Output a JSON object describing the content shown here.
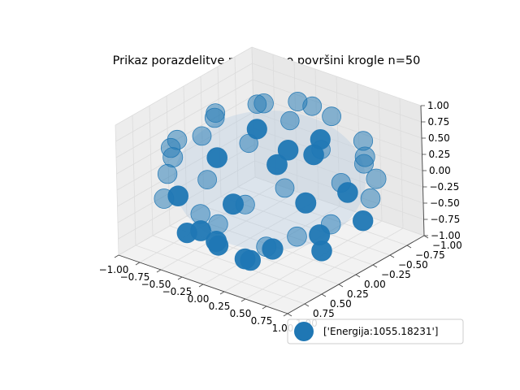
{
  "chart_data": {
    "type": "scatter",
    "title": "Prikaz porazdelitve nabojev po površini krogle n=50",
    "marker_color": "#1f77b4",
    "pane_color": "#f2f2f2",
    "grid_color": "#dcdcdc",
    "xlim": [
      -1.0,
      1.0
    ],
    "ylim": [
      -1.0,
      1.0
    ],
    "zlim": [
      -1.0,
      1.0
    ],
    "x_ticks": [
      "−1.00",
      "−0.75",
      "−0.50",
      "−0.25",
      "0.00",
      "0.25",
      "0.50",
      "0.75",
      "1.00"
    ],
    "y_ticks": [
      "−1.00",
      "−0.75",
      "−0.50",
      "−0.25",
      "0.00",
      "0.25",
      "0.50",
      "0.75",
      "1.00"
    ],
    "z_ticks": [
      "−1.00",
      "−0.75",
      "−0.50",
      "−0.25",
      "0.00",
      "0.25",
      "0.50",
      "0.75",
      "1.00"
    ],
    "legend": {
      "label": "['Energija:1055.18231']",
      "position": "lower right"
    },
    "n_points": 50,
    "points": [
      [
        0.96,
        0.04,
        0.27
      ],
      [
        0.91,
        -0.23,
        -0.35
      ],
      [
        0.82,
        0.48,
        0.31
      ],
      [
        0.78,
        -0.44,
        0.45
      ],
      [
        0.74,
        0.17,
        -0.65
      ],
      [
        0.66,
        -0.65,
        -0.37
      ],
      [
        0.6,
        0.71,
        -0.36
      ],
      [
        0.55,
        -0.08,
        0.83
      ],
      [
        0.48,
        0.47,
        0.74
      ],
      [
        0.46,
        0.28,
        0.84
      ],
      [
        0.4,
        -0.88,
        0.26
      ],
      [
        0.32,
        -0.48,
        -0.82
      ],
      [
        0.3,
        0.9,
        0.31
      ],
      [
        0.26,
        0.7,
        -0.67
      ],
      [
        0.14,
        -0.86,
        -0.49
      ],
      [
        0.11,
        -0.24,
        -0.96
      ],
      [
        0.07,
        0.25,
        0.97
      ],
      [
        0.03,
        -0.88,
        0.47
      ],
      [
        -0.02,
        0.05,
        -1.0
      ],
      [
        -0.03,
        0.98,
        -0.2
      ],
      [
        -0.06,
        0.68,
        0.73
      ],
      [
        -0.13,
        -0.59,
        0.8
      ],
      [
        -0.18,
        -0.97,
        -0.19
      ],
      [
        -0.23,
        -0.22,
        0.95
      ],
      [
        -0.27,
        0.44,
        -0.86
      ],
      [
        -0.33,
        0.93,
        0.17
      ],
      [
        -0.36,
        -0.65,
        -0.67
      ],
      [
        -0.4,
        0.73,
        -0.55
      ],
      [
        -0.46,
        -0.87,
        0.19
      ],
      [
        -0.49,
        0.18,
        0.85
      ],
      [
        -0.54,
        -0.29,
        -0.79
      ],
      [
        -0.6,
        -0.57,
        0.56
      ],
      [
        -0.63,
        0.63,
        0.45
      ],
      [
        -0.68,
        0.19,
        -0.71
      ],
      [
        -0.73,
        0.65,
        -0.22
      ],
      [
        -0.76,
        -0.63,
        -0.15
      ],
      [
        -0.81,
        -0.22,
        0.54
      ],
      [
        -0.85,
        0.39,
        0.35
      ],
      [
        -0.87,
        -0.15,
        -0.47
      ],
      [
        -0.93,
        0.35,
        -0.11
      ],
      [
        -0.97,
        -0.21,
        0.12
      ],
      [
        0.85,
        -0.51,
        0.1
      ],
      [
        0.2,
        0.55,
        -0.81
      ],
      [
        -0.1,
        -0.76,
        0.64
      ],
      [
        0.64,
        0.13,
        0.76
      ],
      [
        0.37,
        -0.92,
        -0.13
      ],
      [
        -0.53,
        0.12,
        -0.84
      ],
      [
        0.12,
        0.94,
        -0.32
      ],
      [
        -0.78,
        0.38,
        0.5
      ],
      [
        0.9,
        0.39,
        -0.2
      ]
    ]
  }
}
